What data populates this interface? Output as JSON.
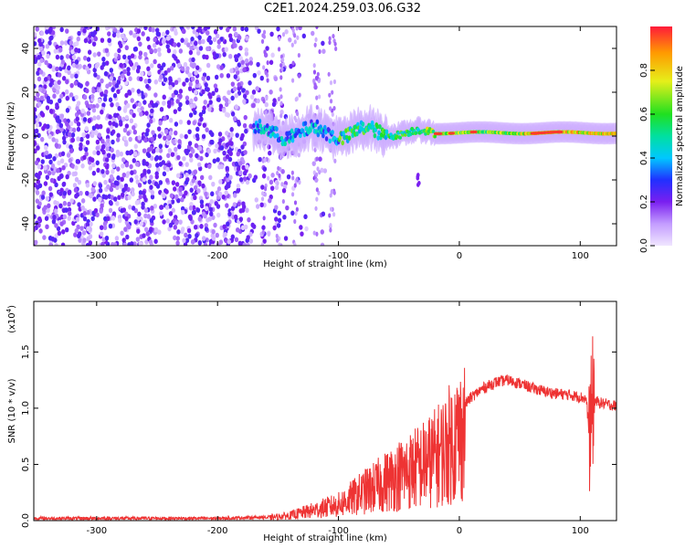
{
  "title": "C2E1.2024.259.03.06.G32",
  "colors": {
    "spectrogram_low": "#e9dbff",
    "spectrogram_mid": "#7a1ff0",
    "snr_line": "#ee3333",
    "frame": "#000000"
  },
  "chart_data": [
    {
      "type": "heatmap",
      "xlabel": "Height of straight line (km)",
      "ylabel": "Frequency (Hz)",
      "xlim": [
        -352,
        130
      ],
      "ylim": [
        -50,
        50
      ],
      "x_ticks": [
        -300,
        -200,
        -100,
        0,
        100
      ],
      "y_ticks": [
        -40,
        -20,
        0,
        20,
        40
      ],
      "colorbar": {
        "label": "Normalized spectral amplitude",
        "range": [
          0.0,
          1.0
        ],
        "ticks": [
          "0.0",
          "0.2",
          "0.4",
          "0.6",
          "0.8"
        ],
        "colormap": "rainbow (violet-blue-cyan-green-yellow-red)"
      },
      "features": {
        "broadband_noise_range_km": [
          -352,
          -110
        ],
        "carrier_line_range_km": [
          -170,
          130
        ],
        "carrier_frequency_hz": 1.5
      }
    },
    {
      "type": "line",
      "xlabel": "Height of straight line (km)",
      "ylabel": "SNR (10 * v/v)",
      "y_multiplier_label": "(x10",
      "y_multiplier_exponent": "4",
      "xlim": [
        -352,
        130
      ],
      "ylim": [
        0,
        1.95
      ],
      "x_ticks": [
        -300,
        -200,
        -100,
        0,
        100
      ],
      "y_ticks": [
        "0.0",
        "0.5",
        "1.0",
        "1.5"
      ],
      "series": [
        {
          "x": [
            -352,
            -300,
            -250,
            -200,
            -160,
            -140,
            -120,
            -100,
            -90,
            -80,
            -70,
            -60,
            -50,
            -40,
            -30,
            -20,
            -12,
            -5,
            0,
            10,
            20,
            30,
            40,
            50,
            60,
            70,
            80,
            90,
            100,
            105,
            108,
            110,
            112,
            115,
            120,
            130
          ],
          "values": [
            0.02,
            0.02,
            0.02,
            0.02,
            0.03,
            0.06,
            0.12,
            0.18,
            0.25,
            0.32,
            0.38,
            0.45,
            0.52,
            0.58,
            0.64,
            0.72,
            0.82,
            0.92,
            0.98,
            1.1,
            1.18,
            1.23,
            1.25,
            1.22,
            1.18,
            1.15,
            1.13,
            1.12,
            1.1,
            1.08,
            0.7,
            1.05,
            1.07,
            1.05,
            1.04,
            1.02
          ]
        }
      ]
    }
  ]
}
